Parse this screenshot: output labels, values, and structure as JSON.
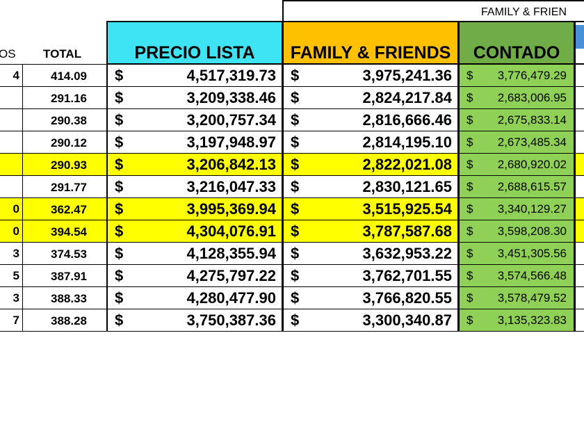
{
  "header": {
    "group": "FAMILY & FRIEN",
    "left": "OS",
    "columns": [
      "TOTAL",
      "PRECIO LISTA",
      "FAMILY & FRIENDS",
      "CONTADO"
    ]
  },
  "currency": "$",
  "table": {
    "rows": [
      {
        "left": "4",
        "total": "414.09",
        "precio": "4,517,319.73",
        "ff": "3,975,241.36",
        "contado": "3,776,479.29",
        "highlight": false
      },
      {
        "left": null,
        "total": "291.16",
        "precio": "3,209,338.46",
        "ff": "2,824,217.84",
        "contado": "2,683,006.95",
        "highlight": false
      },
      {
        "left": null,
        "total": "290.38",
        "precio": "3,200,757.34",
        "ff": "2,816,666.46",
        "contado": "2,675,833.14",
        "highlight": false
      },
      {
        "left": null,
        "total": "290.12",
        "precio": "3,197,948.97",
        "ff": "2,814,195.10",
        "contado": "2,673,485.34",
        "highlight": false
      },
      {
        "left": null,
        "total": "290.93",
        "precio": "3,206,842.13",
        "ff": "2,822,021.08",
        "contado": "2,680,920.02",
        "highlight": true
      },
      {
        "left": null,
        "total": "291.77",
        "precio": "3,216,047.33",
        "ff": "2,830,121.65",
        "contado": "2,688,615.57",
        "highlight": false
      },
      {
        "left": "0",
        "total": "362.47",
        "precio": "3,995,369.94",
        "ff": "3,515,925.54",
        "contado": "3,340,129.27",
        "highlight": true
      },
      {
        "left": "0",
        "total": "394.54",
        "precio": "4,304,076.91",
        "ff": "3,787,587.68",
        "contado": "3,598,208.30",
        "highlight": true
      },
      {
        "left": "3",
        "total": "374.53",
        "precio": "4,128,355.94",
        "ff": "3,632,953.22",
        "contado": "3,451,305.56",
        "highlight": false
      },
      {
        "left": "5",
        "total": "387.91",
        "precio": "4,275,797.22",
        "ff": "3,762,701.55",
        "contado": "3,574,566.48",
        "highlight": false
      },
      {
        "left": "3",
        "total": "388.33",
        "precio": "4,280,477.90",
        "ff": "3,766,820.55",
        "contado": "3,578,479.52",
        "highlight": false
      },
      {
        "left": "7",
        "total": "388.28",
        "precio": "3,750,387.36",
        "ff": "3,300,340.87",
        "contado": "3,135,323.83",
        "highlight": false
      }
    ]
  }
}
